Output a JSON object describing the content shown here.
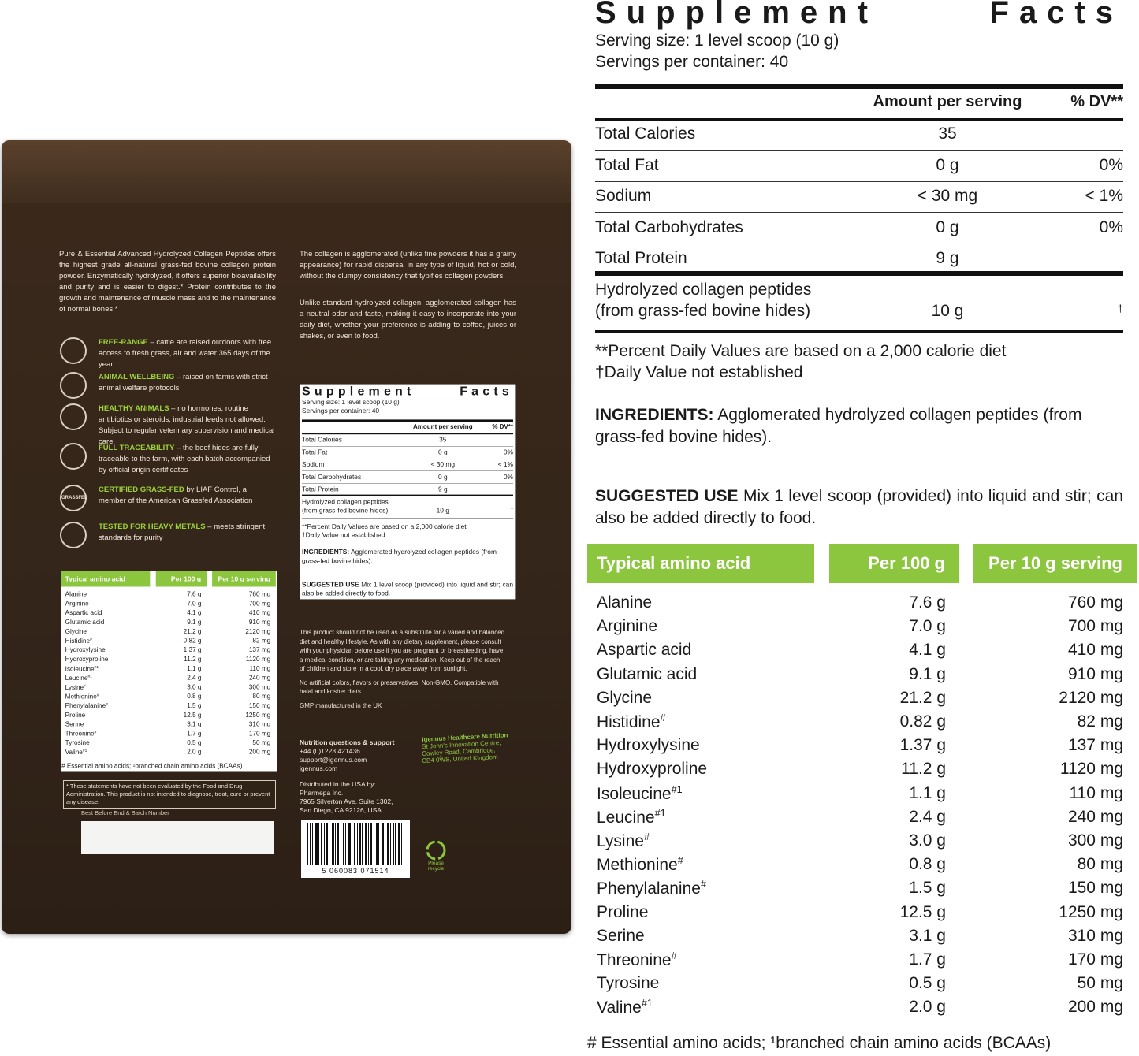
{
  "pouch": {
    "intro": "Pure & Essential Advanced Hydrolyzed Collagen Peptides offers the highest grade all-natural grass-fed bovine collagen protein powder. Enzymatically hydrolyzed, it offers superior bioavailability and purity and is easier to digest.* Protein contributes to the growth and maintenance of muscle mass and to the maintenance of normal bones.*",
    "features": [
      {
        "title": "FREE-RANGE",
        "text": " – cattle are raised outdoors with free access to fresh grass, air and water 365 days of the year"
      },
      {
        "title": "ANIMAL WELLBEING",
        "text": " – raised on farms with strict animal welfare protocols"
      },
      {
        "title": "HEALTHY ANIMALS",
        "text": " – no hormones, routine antibiotics or steroids; industrial feeds not allowed. Subject to regular veterinary supervision and medical care"
      },
      {
        "title": "FULL TRACEABILITY",
        "text": " – the beef hides are fully traceable to the farm, with each batch accompanied by official origin certificates"
      },
      {
        "title": "CERTIFIED GRASS-FED",
        "text": " by LIAF Control, a member of the American Grassfed Association"
      },
      {
        "title": "TESTED FOR HEAVY METALS",
        "text": " – meets stringent standards for purity"
      }
    ],
    "grassfed_badge": "GRASSFED",
    "agglomerated": [
      "The collagen is agglomerated (unlike fine powders it has a grainy appearance) for rapid dispersal in any type of liquid, hot or cold, without the clumpy consistency that typifies collagen powders.",
      "Unlike standard hydrolyzed collagen, agglomerated collagen has a neutral odor and taste, making it easy to incorporate into your daily diet, whether your preference is adding to coffee, juices or shakes, or even to food."
    ],
    "disclaimer": "* These statements have not been evaluated by the Food and Drug Administration. This product is not intended to diagnose, treat, cure or prevent any disease.",
    "best_before": "Best Before End & Batch Number",
    "warnings": [
      "This product should not be used as a substitute for a varied and balanced diet and healthy lifestyle. As with any dietary supplement, please consult with your physician before use if you are pregnant or breastfeeding, have a medical condition, or are taking any medication. Keep out of the reach of children and store in a cool, dry place away from sunlight.",
      "No artificial colors, flavors or preservatives. Non-GMO. Compatible with halal and kosher diets.",
      "GMP manufactured in the UK"
    ],
    "contact": [
      "Nutrition questions & support",
      "+44 (0)1223 421436",
      "support@igennus.com",
      "igennus.com"
    ],
    "company": [
      "Igennus Healthcare Nutrition",
      "St John's Innovation Centre,",
      "Cowley Road, Cambridge,",
      "CB4 0WS, United Kingdom"
    ],
    "distributor": [
      "Distributed in the USA by:",
      "Pharmepa Inc.",
      "7965 Silverton Ave. Suite 1302,",
      "San Diego, CA 92126, USA"
    ],
    "barcode": "5 060083 071514",
    "recycle": "Please recycle"
  },
  "facts": {
    "title": "Supplement Facts",
    "serving_size": "Serving size: 1 level scoop (10 g)",
    "servings": "Servings per container: 40",
    "header": [
      "Amount per serving",
      "% DV**"
    ],
    "rows": [
      {
        "name": "Total Calories",
        "amount": "35"
      },
      {
        "name": "Total Fat",
        "amount": "0 g",
        "dv": "0%"
      },
      {
        "name": "Sodium",
        "amount": "< 30 mg",
        "dv": "< 1%"
      },
      {
        "name": "Total Carbohydrates",
        "amount": "0 g",
        "dv": "0%"
      },
      {
        "name": "Total Protein",
        "amount": "9 g"
      }
    ],
    "collagen": {
      "name": "Hydrolyzed collagen peptides",
      "sub": "(from grass-fed bovine hides)",
      "amount": "10 g",
      "dv": "†"
    },
    "footnotes": [
      "**Percent Daily Values are based on a 2,000 calorie diet",
      "†Daily Value not established"
    ],
    "ingredients": {
      "label": "INGREDIENTS:",
      "text": " Agglomerated hydrolyzed collagen peptides (from grass-fed bovine hides)."
    },
    "suggested_use": {
      "label": "SUGGESTED USE",
      "text": " Mix 1 level scoop (provided) into liquid and stir; can also be added directly to food."
    }
  },
  "amino": {
    "headers": [
      "Typical amino acid profile",
      "Per 100 g",
      "Per 10 g serving"
    ],
    "rows": [
      {
        "name": "Alanine",
        "per100": "7.6 g",
        "per10": "760 mg"
      },
      {
        "name": "Arginine",
        "per100": "7.0 g",
        "per10": "700 mg"
      },
      {
        "name": "Aspartic acid",
        "per100": "4.1 g",
        "per10": "410 mg"
      },
      {
        "name": "Glutamic acid",
        "per100": "9.1 g",
        "per10": "910 mg"
      },
      {
        "name": "Glycine",
        "per100": "21.2 g",
        "per10": "2120 mg"
      },
      {
        "name": "Histidine",
        "sup": "#",
        "per100": "0.82 g",
        "per10": "82 mg"
      },
      {
        "name": "Hydroxylysine",
        "per100": "1.37 g",
        "per10": "137 mg"
      },
      {
        "name": "Hydroxyproline",
        "per100": "11.2 g",
        "per10": "1120 mg"
      },
      {
        "name": "Isoleucine",
        "sup": "#1",
        "per100": "1.1 g",
        "per10": "110 mg"
      },
      {
        "name": "Leucine",
        "sup": "#1",
        "per100": "2.4 g",
        "per10": "240 mg"
      },
      {
        "name": "Lysine",
        "sup": "#",
        "per100": "3.0 g",
        "per10": "300 mg"
      },
      {
        "name": "Methionine",
        "sup": "#",
        "per100": "0.8 g",
        "per10": "80 mg"
      },
      {
        "name": "Phenylalanine",
        "sup": "#",
        "per100": "1.5 g",
        "per10": "150 mg"
      },
      {
        "name": "Proline",
        "per100": "12.5 g",
        "per10": "1250 mg"
      },
      {
        "name": "Serine",
        "per100": "3.1 g",
        "per10": "310 mg"
      },
      {
        "name": "Threonine",
        "sup": "#",
        "per100": "1.7 g",
        "per10": "170 mg"
      },
      {
        "name": "Tyrosine",
        "per100": "0.5 g",
        "per10": "50 mg"
      },
      {
        "name": "Valine",
        "sup": "#1",
        "per100": "2.0 g",
        "per10": "200 mg"
      }
    ],
    "footnote": "# Essential amino acids; ¹branched chain amino acids (BCAAs)"
  }
}
